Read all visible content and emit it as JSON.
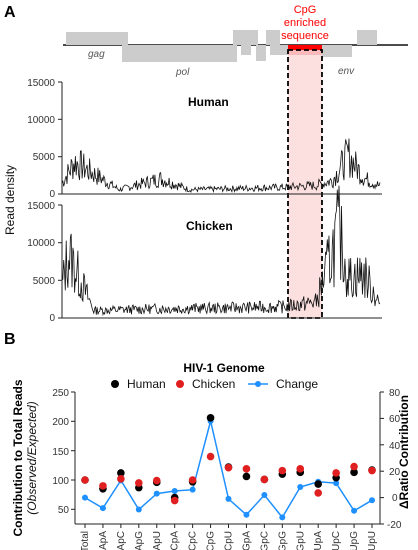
{
  "panel_a": {
    "label": "A",
    "genes": {
      "gag": "gag",
      "pol": "pol",
      "env": "env"
    },
    "cpg_label": [
      "CpG",
      "enriched",
      "sequence"
    ],
    "ylabel": "Read density",
    "human_title": "Human",
    "chicken_title": "Chicken",
    "y_ticks": [
      "0",
      "5000",
      "10000",
      "15000"
    ],
    "highlight_color": "#ff0000"
  },
  "panel_b": {
    "label": "B",
    "title": "HIV-1 Genome",
    "ylabel_main": "Contribution to Total Reads",
    "ylabel_sub": "(Observed/Expected)",
    "y2label": "ΔRatio Contribution",
    "legend": [
      "Human",
      "Chicken",
      "Change"
    ],
    "y_ticks_left": [
      "50",
      "100",
      "150",
      "200",
      "250"
    ],
    "y_ticks_right": [
      "-20",
      "0",
      "20",
      "40",
      "60",
      "80"
    ]
  },
  "chart_data": [
    {
      "type": "line",
      "title": "Human",
      "ylabel": "Read density",
      "ylim": [
        0,
        15000
      ],
      "series": [
        {
          "name": "Human",
          "x": [
            0,
            4,
            18,
            31,
            40,
            55,
            70,
            80,
            85,
            90,
            95,
            100
          ],
          "values": [
            1800,
            5200,
            700,
            2500,
            700,
            900,
            1100,
            1400,
            2200,
            6300,
            2600,
            1300
          ]
        }
      ]
    },
    {
      "type": "line",
      "title": "Chicken",
      "ylabel": "Read density",
      "ylim": [
        0,
        15000
      ],
      "series": [
        {
          "name": "Chicken",
          "x": [
            0,
            2,
            10,
            30,
            50,
            70,
            80,
            87,
            90,
            95,
            100
          ],
          "values": [
            5000,
            10500,
            1200,
            1500,
            1600,
            1800,
            2600,
            14000,
            6500,
            7000,
            2200
          ]
        }
      ]
    },
    {
      "type": "scatter",
      "title": "HIV-1 Genome",
      "categories": [
        "Total",
        "ApA",
        "ApC",
        "ApG",
        "ApU",
        "CpA",
        "CpC",
        "CpG",
        "CpU",
        "GpA",
        "GpC",
        "GpG",
        "GpU",
        "UpA",
        "UpC",
        "UpG",
        "UpU"
      ],
      "ylim": [
        25,
        250
      ],
      "y2lim": [
        -20,
        80
      ],
      "series": [
        {
          "name": "Human",
          "color": "#000000",
          "axis": "left",
          "values": [
            100,
            85,
            112,
            87,
            96,
            70,
            97,
            206,
            122,
            106,
            101,
            110,
            113,
            93,
            104,
            113,
            117
          ]
        },
        {
          "name": "Chicken",
          "color": "#e02020",
          "axis": "left",
          "values": [
            100,
            90,
            102,
            95,
            99,
            65,
            100,
            140,
            121,
            119,
            101,
            116,
            119,
            78,
            112,
            123,
            116
          ]
        },
        {
          "name": "Change",
          "color": "#1e90ff",
          "axis": "right",
          "values": [
            0,
            -8,
            13,
            -9,
            3,
            5,
            6,
            58,
            -1,
            -13,
            2,
            -15,
            8,
            12,
            11,
            -10,
            -2
          ]
        }
      ],
      "legend": "top"
    }
  ]
}
